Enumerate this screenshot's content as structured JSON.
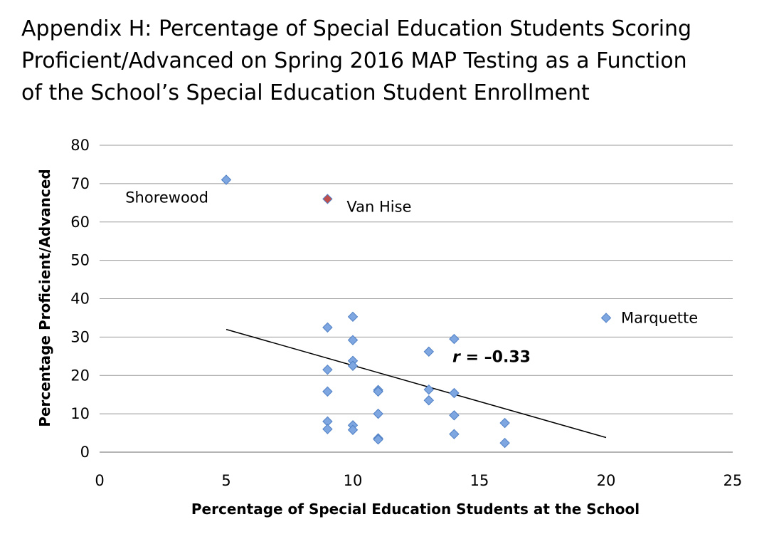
{
  "chart_data": {
    "type": "scatter",
    "title_lines": [
      "Appendix H: Percentage of Special Education Students Scoring",
      "Proficient/Advanced on Spring 2016 MAP Testing as a Function",
      "of the School’s Special Education Student Enrollment"
    ],
    "xlabel": "Percentage of Special Education Students at the School",
    "ylabel": "Percentage Proficient/Advanced",
    "xlim": [
      0,
      25
    ],
    "ylim": [
      0,
      80
    ],
    "xticks": [
      0,
      5,
      10,
      15,
      20,
      25
    ],
    "yticks": [
      0,
      10,
      20,
      30,
      40,
      50,
      60,
      70,
      80
    ],
    "grid": "horizontal",
    "colors": {
      "point": "#7ea6e0",
      "point_stroke": "#4f7fc4",
      "highlight": "#c0504d",
      "trendline": "#000000",
      "grid": "#999999"
    },
    "points": [
      {
        "x": 5,
        "y": 71,
        "label": "Shorewood"
      },
      {
        "x": 9,
        "y": 66,
        "label": "Van Hise",
        "highlight": true
      },
      {
        "x": 20,
        "y": 35,
        "label": "Marquette"
      },
      {
        "x": 9,
        "y": 32.5
      },
      {
        "x": 9,
        "y": 21.5
      },
      {
        "x": 9,
        "y": 15.8
      },
      {
        "x": 9,
        "y": 8
      },
      {
        "x": 9,
        "y": 6
      },
      {
        "x": 10,
        "y": 35.3
      },
      {
        "x": 10,
        "y": 29.2
      },
      {
        "x": 10,
        "y": 23.8
      },
      {
        "x": 10,
        "y": 22.5
      },
      {
        "x": 10,
        "y": 7
      },
      {
        "x": 10,
        "y": 5.8
      },
      {
        "x": 11,
        "y": 16.2
      },
      {
        "x": 11,
        "y": 15.8
      },
      {
        "x": 11,
        "y": 10
      },
      {
        "x": 11,
        "y": 3.6
      },
      {
        "x": 11,
        "y": 3.3
      },
      {
        "x": 13,
        "y": 26.2
      },
      {
        "x": 13,
        "y": 16.3
      },
      {
        "x": 13,
        "y": 13.5
      },
      {
        "x": 14,
        "y": 29.5
      },
      {
        "x": 14,
        "y": 15.4
      },
      {
        "x": 14,
        "y": 9.6
      },
      {
        "x": 14,
        "y": 4.7
      },
      {
        "x": 16,
        "y": 7.6
      },
      {
        "x": 16,
        "y": 2.4
      }
    ],
    "trendline": {
      "x": [
        5,
        20
      ],
      "y": [
        32,
        3.8
      ]
    },
    "r_label": {
      "italic": "r",
      "rest": " = –0.33",
      "x": 15,
      "y": 25
    }
  }
}
